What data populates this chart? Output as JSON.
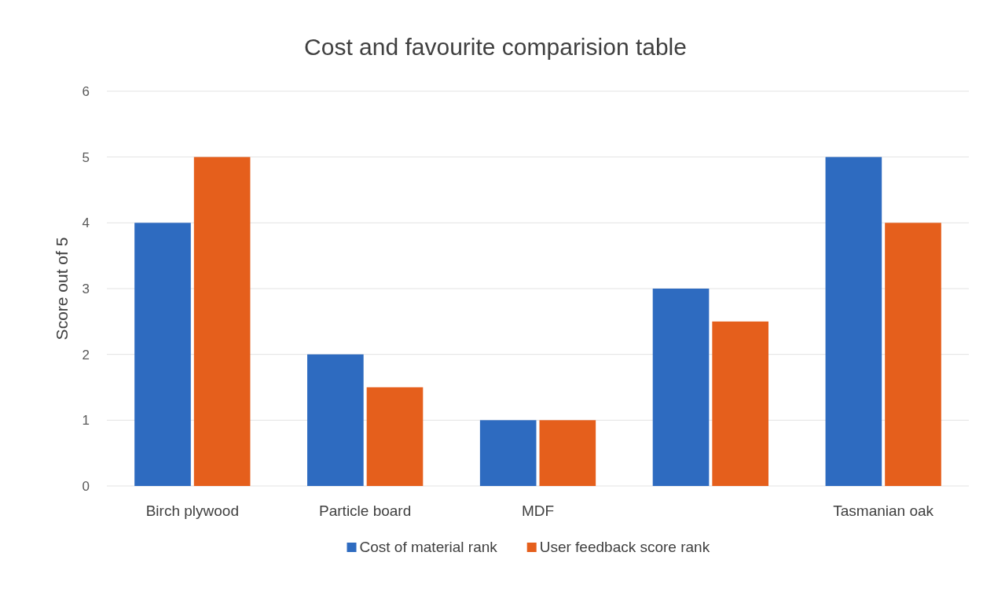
{
  "chart_data": {
    "type": "bar",
    "title": "Cost and favourite comparision table",
    "ylabel": "Score out of 5",
    "categories": [
      "Birch plywood",
      "Particle board",
      "MDF",
      null,
      "Tasmanian oak"
    ],
    "series": [
      {
        "name": "Cost of material rank",
        "color": "#2e6bc0",
        "values": [
          4,
          2,
          1,
          3,
          5
        ]
      },
      {
        "name": "User feedback score rank",
        "color": "#e55f1c",
        "values": [
          5,
          1.5,
          1,
          2.5,
          4
        ]
      }
    ],
    "ylim": [
      0,
      6
    ],
    "yticks": [
      0,
      1,
      2,
      3,
      4,
      5,
      6
    ],
    "grid": "y",
    "legend": "bottom"
  }
}
